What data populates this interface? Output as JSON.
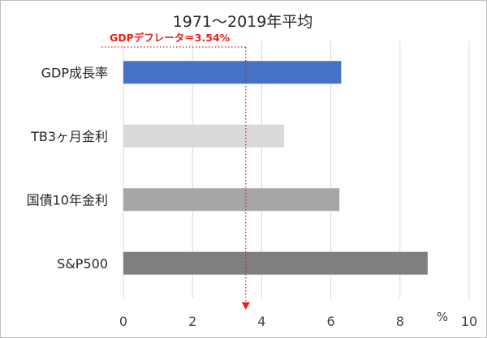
{
  "chart_data": {
    "type": "bar",
    "orientation": "horizontal",
    "title": "1971～2019年平均",
    "categories": [
      "GDP成長率",
      "TB3ヶ月金利",
      "国債10年金利",
      "S&P500"
    ],
    "values": [
      6.3,
      4.65,
      6.25,
      8.8
    ],
    "colors": [
      "#4472c4",
      "#d9d9d9",
      "#a6a6a6",
      "#7f7f7f"
    ],
    "xlim": [
      0,
      10
    ],
    "xticks": [
      0,
      2,
      4,
      6,
      8,
      10
    ],
    "xticks_shown": [
      "0",
      "2",
      "4",
      "6",
      "8",
      "10"
    ],
    "unit_label": "%",
    "grid": "vertical",
    "reference_line": {
      "label": "GDPデフレータ＝3.54%",
      "value": 3.54,
      "color": "#e8201a",
      "style": "dotted"
    }
  }
}
